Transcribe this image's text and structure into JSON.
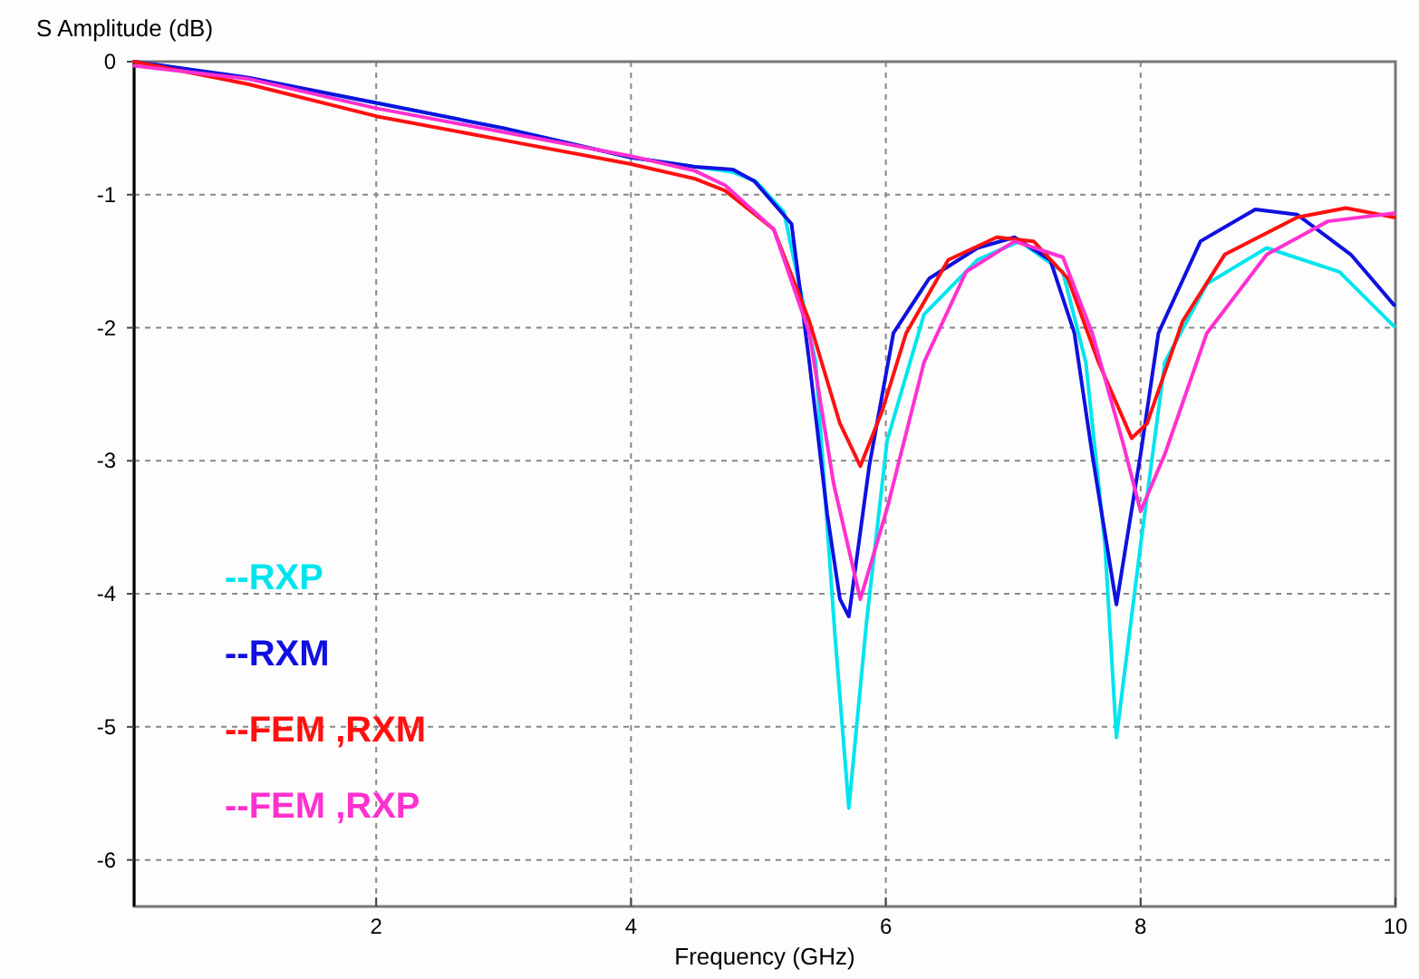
{
  "chart_data": {
    "type": "line",
    "xlabel": "Frequency (GHz)",
    "ylabel": "S Amplitude (dB)",
    "xlim": [
      0.1,
      10
    ],
    "ylim": [
      -6.35,
      0
    ],
    "xticks": [
      2,
      4,
      6,
      8,
      10
    ],
    "yticks": [
      0,
      -1,
      -2,
      -3,
      -4,
      -5,
      -6
    ],
    "grid": true,
    "legend": "bottom left",
    "line_style": "solid",
    "marker": "none",
    "series": [
      {
        "name": "--RXP",
        "color": "#00e5ee",
        "x": [
          0.1,
          1,
          2,
          3,
          4,
          4.5,
          4.8,
          4.98,
          5.2,
          5.45,
          5.6,
          5.71,
          5.85,
          6.01,
          6.3,
          6.72,
          7.05,
          7.39,
          7.57,
          7.72,
          7.81,
          8.0,
          8.19,
          8.52,
          8.99,
          9.56,
          9.99
        ],
        "values": [
          0,
          -0.13,
          -0.31,
          -0.5,
          -0.72,
          -0.79,
          -0.83,
          -0.9,
          -1.13,
          -2.26,
          -4.3,
          -5.61,
          -4.2,
          -2.85,
          -1.9,
          -1.49,
          -1.35,
          -1.58,
          -2.26,
          -3.63,
          -5.08,
          -3.63,
          -2.26,
          -1.67,
          -1.4,
          -1.58,
          -1.99
        ]
      },
      {
        "name": "--RXM",
        "color": "#1010e0",
        "x": [
          0.1,
          1,
          2,
          3,
          4,
          4.5,
          4.8,
          4.97,
          5.26,
          5.4,
          5.54,
          5.64,
          5.71,
          5.87,
          6.06,
          6.34,
          6.72,
          7.01,
          7.29,
          7.48,
          7.62,
          7.81,
          8.0,
          8.14,
          8.47,
          8.9,
          9.23,
          9.65,
          9.99
        ],
        "values": [
          0,
          -0.12,
          -0.31,
          -0.5,
          -0.72,
          -0.79,
          -0.81,
          -0.9,
          -1.22,
          -2.26,
          -3.4,
          -4.04,
          -4.17,
          -3.04,
          -2.04,
          -1.63,
          -1.4,
          -1.32,
          -1.49,
          -2.04,
          -2.95,
          -4.08,
          -2.95,
          -2.04,
          -1.35,
          -1.11,
          -1.15,
          -1.45,
          -1.83
        ]
      },
      {
        "name": "--FEM ,RXM",
        "color": "#ff1010",
        "x": [
          0.1,
          1,
          2,
          3,
          4,
          4.5,
          4.74,
          5.12,
          5.4,
          5.64,
          5.8,
          5.97,
          6.16,
          6.49,
          6.87,
          7.16,
          7.43,
          7.67,
          7.93,
          8.05,
          8.33,
          8.66,
          9.23,
          9.61,
          9.99
        ],
        "values": [
          0,
          -0.17,
          -0.41,
          -0.59,
          -0.77,
          -0.88,
          -0.97,
          -1.26,
          -1.95,
          -2.72,
          -3.04,
          -2.63,
          -2.04,
          -1.49,
          -1.32,
          -1.35,
          -1.63,
          -2.26,
          -2.83,
          -2.72,
          -1.95,
          -1.45,
          -1.17,
          -1.1,
          -1.17
        ]
      },
      {
        "name": "--FEM ,RXP",
        "color": "#ff30d0",
        "x": [
          0.1,
          1,
          2,
          3,
          4,
          4.5,
          4.74,
          5.12,
          5.4,
          5.59,
          5.8,
          6.01,
          6.3,
          6.63,
          7.01,
          7.39,
          7.62,
          7.86,
          8.0,
          8.19,
          8.52,
          8.99,
          9.47,
          9.99
        ],
        "values": [
          -0.03,
          -0.13,
          -0.35,
          -0.53,
          -0.71,
          -0.82,
          -0.93,
          -1.26,
          -2.04,
          -3.17,
          -4.04,
          -3.36,
          -2.26,
          -1.58,
          -1.35,
          -1.47,
          -2.04,
          -2.86,
          -3.38,
          -2.95,
          -2.04,
          -1.45,
          -1.2,
          -1.14
        ]
      }
    ]
  }
}
